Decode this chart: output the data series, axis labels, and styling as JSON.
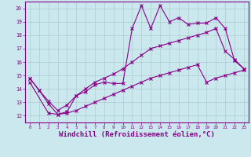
{
  "background_color": "#cce8ef",
  "grid_color": "#aacccc",
  "line_color": "#880088",
  "xlabel": "Windchill (Refroidissement éolien,°C)",
  "xlabel_fontsize": 6.5,
  "ylim": [
    11.5,
    20.5
  ],
  "xlim": [
    -0.5,
    23.5
  ],
  "series1_x": [
    0,
    1,
    2,
    3,
    4,
    5,
    6,
    7,
    8,
    9,
    10,
    11,
    12,
    13,
    14,
    15,
    16,
    17,
    18,
    19,
    20,
    21,
    22,
    23
  ],
  "series1_y": [
    14.8,
    13.9,
    12.9,
    12.1,
    12.3,
    13.5,
    13.8,
    14.3,
    14.5,
    14.4,
    14.4,
    18.5,
    20.2,
    18.5,
    20.2,
    19.0,
    19.3,
    18.8,
    18.9,
    18.9,
    19.3,
    18.5,
    16.1,
    15.5
  ],
  "series2_x": [
    0,
    1,
    2,
    3,
    4,
    5,
    6,
    7,
    8,
    9,
    10,
    11,
    12,
    13,
    14,
    15,
    16,
    17,
    18,
    19,
    20,
    21,
    22,
    23
  ],
  "series2_y": [
    14.8,
    13.9,
    13.1,
    12.4,
    12.8,
    13.5,
    14.0,
    14.5,
    14.8,
    15.1,
    15.5,
    16.0,
    16.5,
    17.0,
    17.2,
    17.4,
    17.6,
    17.8,
    18.0,
    18.2,
    18.5,
    16.8,
    16.2,
    15.5
  ],
  "series3_x": [
    0,
    2,
    3,
    4,
    5,
    6,
    7,
    8,
    9,
    10,
    11,
    12,
    13,
    14,
    15,
    16,
    17,
    18,
    19,
    20,
    21,
    22,
    23
  ],
  "series3_y": [
    14.5,
    12.2,
    12.1,
    12.2,
    12.4,
    12.7,
    13.0,
    13.3,
    13.6,
    13.9,
    14.2,
    14.5,
    14.8,
    15.0,
    15.2,
    15.4,
    15.6,
    15.8,
    14.5,
    14.8,
    15.0,
    15.2,
    15.4
  ]
}
